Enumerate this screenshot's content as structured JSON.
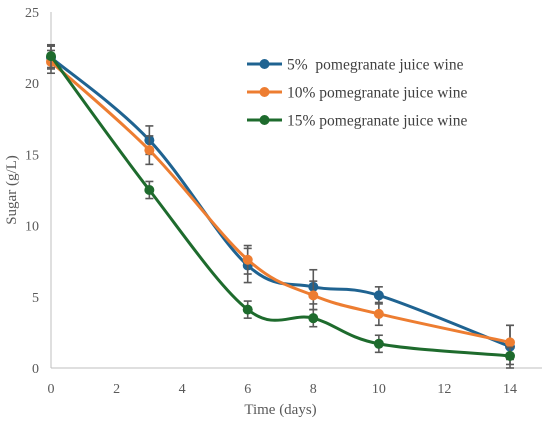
{
  "chart_data": {
    "type": "line",
    "xlabel": "Time (days)",
    "ylabel": "Sugar (g/L)",
    "xlim": [
      0,
      14
    ],
    "ylim": [
      0,
      25
    ],
    "x_ticks": [
      0,
      2,
      4,
      6,
      8,
      10,
      12,
      14
    ],
    "y_ticks": [
      0,
      5,
      10,
      15,
      20,
      25
    ],
    "grid": false,
    "legend_position": "top-right",
    "x": [
      0,
      3,
      6,
      8,
      10,
      14
    ],
    "series": [
      {
        "name": "5%  pomegranate juice wine",
        "color": "#1f6391",
        "values": [
          21.8,
          16.0,
          7.2,
          5.7,
          5.1,
          1.5
        ],
        "errors": [
          0.8,
          1.0,
          1.2,
          1.2,
          0.6,
          1.5
        ]
      },
      {
        "name": "10% pomegranate juice wine",
        "color": "#ed7d31",
        "values": [
          21.5,
          15.3,
          7.6,
          5.1,
          3.8,
          1.8
        ],
        "errors": [
          0.8,
          1.0,
          1.0,
          1.0,
          0.8,
          1.2
        ]
      },
      {
        "name": "15% pomegranate juice wine",
        "color": "#1e6b2d",
        "values": [
          21.9,
          12.5,
          4.1,
          3.5,
          1.7,
          0.85
        ],
        "errors": [
          0.8,
          0.6,
          0.6,
          0.6,
          0.6,
          0.6
        ]
      }
    ]
  }
}
